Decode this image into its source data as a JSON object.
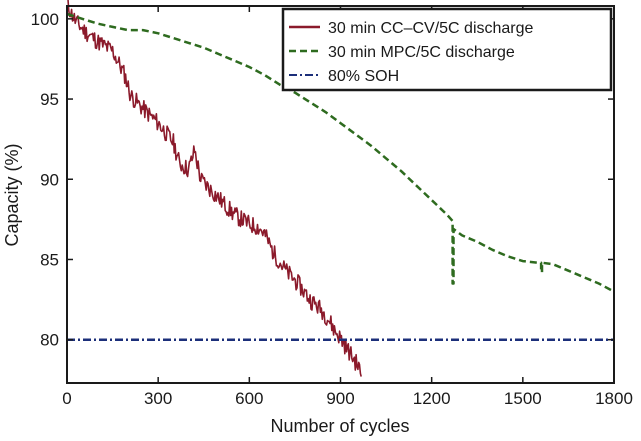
{
  "chart_data": {
    "type": "line",
    "title": "",
    "xlabel": "Number of cycles",
    "ylabel": "Capacity (%)",
    "xlim": [
      0,
      1800
    ],
    "ylim": [
      77.3,
      100.8
    ],
    "xticks": [
      0,
      300,
      600,
      900,
      1200,
      1500,
      1800
    ],
    "yticks": [
      80,
      85,
      90,
      95,
      100
    ],
    "grid": false,
    "legend_position": "top-right",
    "series": [
      {
        "name": "30 min CC–CV/5C discharge",
        "color": "#8b1a2b",
        "style": "solid",
        "noisy": true,
        "x": [
          0,
          15,
          30,
          60,
          100,
          150,
          190,
          210,
          250,
          300,
          350,
          370,
          400,
          420,
          440,
          470,
          500,
          550,
          600,
          630,
          650,
          680,
          720,
          760,
          800,
          840,
          860,
          880,
          900,
          920,
          940,
          960,
          968
        ],
        "y": [
          101.0,
          100.3,
          99.8,
          99.2,
          98.6,
          98.0,
          96.5,
          95.2,
          94.4,
          93.5,
          92.3,
          91.0,
          90.6,
          91.8,
          90.0,
          89.4,
          88.8,
          87.8,
          87.2,
          87.0,
          86.6,
          85.4,
          84.3,
          83.5,
          82.5,
          81.8,
          81.3,
          80.6,
          80.1,
          79.5,
          78.9,
          78.3,
          77.7
        ]
      },
      {
        "name": "30 min MPC/5C discharge",
        "color": "#2e6b1f",
        "style": "dashed",
        "noisy": false,
        "x": [
          0,
          50,
          100,
          150,
          200,
          250,
          300,
          350,
          400,
          450,
          500,
          550,
          600,
          650,
          700,
          750,
          800,
          850,
          900,
          950,
          1000,
          1050,
          1100,
          1150,
          1200,
          1250,
          1269,
          1269,
          1272,
          1272,
          1300,
          1350,
          1400,
          1450,
          1500,
          1550,
          1560,
          1560,
          1563,
          1563,
          1600,
          1650,
          1700,
          1750,
          1800
        ],
        "y": [
          100.3,
          100.0,
          99.7,
          99.5,
          99.3,
          99.3,
          99.1,
          98.8,
          98.5,
          98.2,
          97.8,
          97.4,
          97.0,
          96.5,
          95.9,
          95.4,
          94.8,
          94.2,
          93.5,
          92.8,
          92.1,
          91.3,
          90.5,
          89.6,
          88.7,
          87.8,
          87.4,
          83.5,
          83.5,
          86.9,
          86.5,
          86.1,
          85.6,
          85.2,
          84.9,
          84.8,
          84.8,
          84.2,
          84.2,
          84.8,
          84.7,
          84.3,
          83.9,
          83.5,
          83.0
        ]
      },
      {
        "name": "80% SOH",
        "color": "#1c2f7a",
        "style": "dashdot",
        "noisy": false,
        "x": [
          0,
          1800
        ],
        "y": [
          80,
          80
        ]
      }
    ]
  }
}
